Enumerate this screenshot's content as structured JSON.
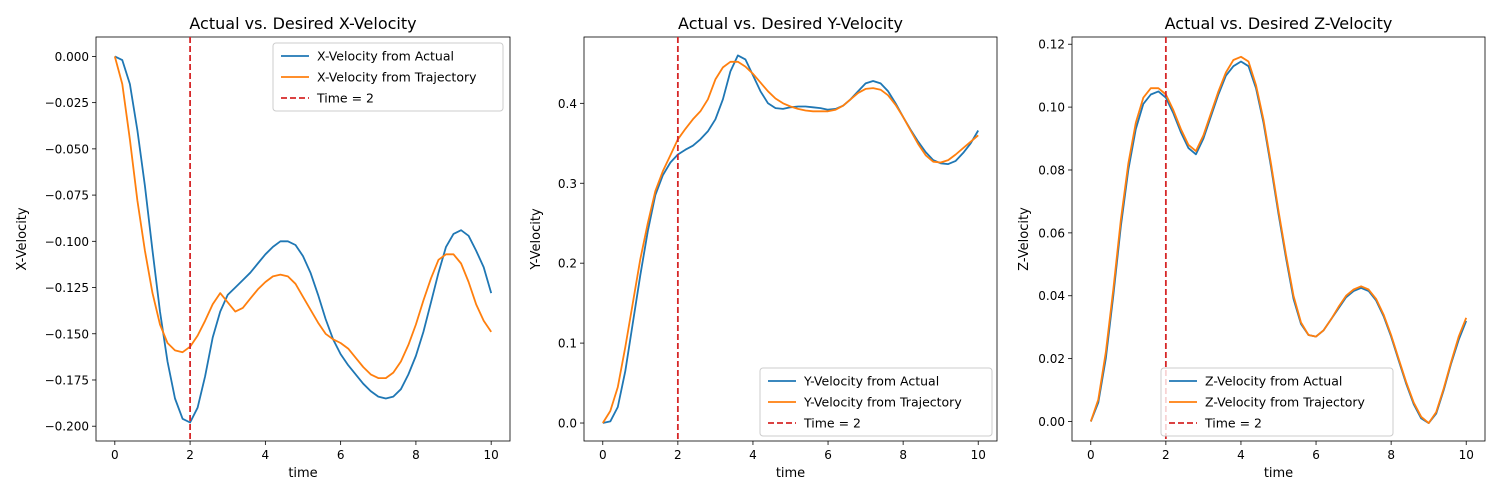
{
  "chart_data": [
    {
      "type": "line",
      "title": "Actual vs. Desired X-Velocity",
      "xlabel": "time",
      "ylabel": "X-Velocity",
      "xlim": [
        -0.5,
        10.5
      ],
      "ylim": [
        -0.208,
        0.0105
      ],
      "xticks": [
        0,
        2,
        4,
        6,
        8,
        10
      ],
      "xtick_labels": [
        "0",
        "2",
        "4",
        "6",
        "8",
        "10"
      ],
      "yticks": [
        0.0,
        -0.025,
        -0.05,
        -0.075,
        -0.1,
        -0.125,
        -0.15,
        -0.175,
        -0.2
      ],
      "ytick_labels": [
        "0.000",
        "−0.025",
        "−0.050",
        "−0.075",
        "−0.100",
        "−0.125",
        "−0.150",
        "−0.175",
        "−0.200"
      ],
      "grid": false,
      "legend_position": "upper-right",
      "series": [
        {
          "name": "X-Velocity from Actual",
          "color": "#1f77b4",
          "style": "solid",
          "x": [
            0,
            0.2,
            0.4,
            0.6,
            0.8,
            1.0,
            1.2,
            1.4,
            1.6,
            1.8,
            2.0,
            2.2,
            2.4,
            2.6,
            2.8,
            3.0,
            3.2,
            3.4,
            3.6,
            3.8,
            4.0,
            4.2,
            4.4,
            4.6,
            4.8,
            5.0,
            5.2,
            5.4,
            5.6,
            5.8,
            6.0,
            6.2,
            6.4,
            6.6,
            6.8,
            7.0,
            7.2,
            7.4,
            7.6,
            7.8,
            8.0,
            8.2,
            8.4,
            8.6,
            8.8,
            9.0,
            9.2,
            9.4,
            9.6,
            9.8,
            10.0
          ],
          "y": [
            0.0,
            -0.002,
            -0.015,
            -0.04,
            -0.07,
            -0.105,
            -0.138,
            -0.165,
            -0.185,
            -0.196,
            -0.198,
            -0.19,
            -0.173,
            -0.152,
            -0.138,
            -0.129,
            -0.125,
            -0.121,
            -0.117,
            -0.112,
            -0.107,
            -0.103,
            -0.1,
            -0.1,
            -0.102,
            -0.108,
            -0.117,
            -0.129,
            -0.142,
            -0.153,
            -0.161,
            -0.167,
            -0.172,
            -0.177,
            -0.181,
            -0.184,
            -0.185,
            -0.184,
            -0.18,
            -0.172,
            -0.162,
            -0.149,
            -0.133,
            -0.117,
            -0.103,
            -0.096,
            -0.094,
            -0.097,
            -0.105,
            -0.114,
            -0.128
          ]
        },
        {
          "name": "X-Velocity from Trajectory",
          "color": "#ff7f0e",
          "style": "solid",
          "x": [
            0,
            0.2,
            0.4,
            0.6,
            0.8,
            1.0,
            1.2,
            1.4,
            1.6,
            1.8,
            2.0,
            2.2,
            2.4,
            2.6,
            2.8,
            3.0,
            3.2,
            3.4,
            3.6,
            3.8,
            4.0,
            4.2,
            4.4,
            4.6,
            4.8,
            5.0,
            5.2,
            5.4,
            5.6,
            5.8,
            6.0,
            6.2,
            6.4,
            6.6,
            6.8,
            7.0,
            7.2,
            7.4,
            7.6,
            7.8,
            8.0,
            8.2,
            8.4,
            8.6,
            8.8,
            9.0,
            9.2,
            9.4,
            9.6,
            9.8,
            10.0
          ],
          "y": [
            0.0,
            -0.015,
            -0.045,
            -0.078,
            -0.105,
            -0.128,
            -0.145,
            -0.155,
            -0.159,
            -0.16,
            -0.157,
            -0.151,
            -0.143,
            -0.134,
            -0.128,
            -0.133,
            -0.138,
            -0.136,
            -0.131,
            -0.126,
            -0.122,
            -0.119,
            -0.118,
            -0.119,
            -0.123,
            -0.13,
            -0.137,
            -0.144,
            -0.15,
            -0.153,
            -0.155,
            -0.158,
            -0.163,
            -0.168,
            -0.172,
            -0.174,
            -0.174,
            -0.171,
            -0.165,
            -0.156,
            -0.145,
            -0.132,
            -0.12,
            -0.11,
            -0.107,
            -0.107,
            -0.112,
            -0.122,
            -0.134,
            -0.143,
            -0.149
          ]
        },
        {
          "name": "Time = 2",
          "color": "#d62728",
          "style": "dashed",
          "vline_x": 2
        }
      ]
    },
    {
      "type": "line",
      "title": "Actual vs. Desired Y-Velocity",
      "xlabel": "time",
      "ylabel": "Y-Velocity",
      "xlim": [
        -0.5,
        10.5
      ],
      "ylim": [
        -0.0225,
        0.483
      ],
      "xticks": [
        0,
        2,
        4,
        6,
        8,
        10
      ],
      "xtick_labels": [
        "0",
        "2",
        "4",
        "6",
        "8",
        "10"
      ],
      "yticks": [
        0.0,
        0.1,
        0.2,
        0.3,
        0.4
      ],
      "ytick_labels": [
        "0.0",
        "0.1",
        "0.2",
        "0.3",
        "0.4"
      ],
      "grid": false,
      "legend_position": "lower-right",
      "series": [
        {
          "name": "Y-Velocity from Actual",
          "color": "#1f77b4",
          "style": "solid",
          "x": [
            0,
            0.2,
            0.4,
            0.6,
            0.8,
            1.0,
            1.2,
            1.4,
            1.6,
            1.8,
            2.0,
            2.2,
            2.4,
            2.6,
            2.8,
            3.0,
            3.2,
            3.4,
            3.6,
            3.8,
            4.0,
            4.2,
            4.4,
            4.6,
            4.8,
            5.0,
            5.2,
            5.4,
            5.6,
            5.8,
            6.0,
            6.2,
            6.4,
            6.6,
            6.8,
            7.0,
            7.2,
            7.4,
            7.6,
            7.8,
            8.0,
            8.2,
            8.4,
            8.6,
            8.8,
            9.0,
            9.2,
            9.4,
            9.6,
            9.8,
            10.0
          ],
          "y": [
            0.0,
            0.002,
            0.02,
            0.065,
            0.125,
            0.185,
            0.24,
            0.285,
            0.31,
            0.326,
            0.336,
            0.342,
            0.347,
            0.355,
            0.365,
            0.38,
            0.405,
            0.44,
            0.46,
            0.455,
            0.435,
            0.415,
            0.4,
            0.394,
            0.393,
            0.395,
            0.396,
            0.396,
            0.395,
            0.394,
            0.392,
            0.393,
            0.397,
            0.405,
            0.415,
            0.425,
            0.428,
            0.425,
            0.415,
            0.4,
            0.383,
            0.367,
            0.352,
            0.339,
            0.329,
            0.325,
            0.324,
            0.328,
            0.338,
            0.35,
            0.366
          ]
        },
        {
          "name": "Y-Velocity from Trajectory",
          "color": "#ff7f0e",
          "style": "solid",
          "x": [
            0,
            0.2,
            0.4,
            0.6,
            0.8,
            1.0,
            1.2,
            1.4,
            1.6,
            1.8,
            2.0,
            2.2,
            2.4,
            2.6,
            2.8,
            3.0,
            3.2,
            3.4,
            3.6,
            3.8,
            4.0,
            4.2,
            4.4,
            4.6,
            4.8,
            5.0,
            5.2,
            5.4,
            5.6,
            5.8,
            6.0,
            6.2,
            6.4,
            6.6,
            6.8,
            7.0,
            7.2,
            7.4,
            7.6,
            7.8,
            8.0,
            8.2,
            8.4,
            8.6,
            8.8,
            9.0,
            9.2,
            9.4,
            9.6,
            9.8,
            10.0
          ],
          "y": [
            0.0,
            0.015,
            0.045,
            0.095,
            0.15,
            0.205,
            0.25,
            0.29,
            0.315,
            0.335,
            0.355,
            0.368,
            0.38,
            0.39,
            0.405,
            0.43,
            0.445,
            0.452,
            0.452,
            0.446,
            0.437,
            0.426,
            0.415,
            0.406,
            0.4,
            0.396,
            0.393,
            0.391,
            0.39,
            0.39,
            0.39,
            0.392,
            0.397,
            0.405,
            0.413,
            0.418,
            0.419,
            0.417,
            0.41,
            0.398,
            0.383,
            0.366,
            0.349,
            0.335,
            0.327,
            0.326,
            0.329,
            0.336,
            0.344,
            0.352,
            0.36
          ]
        },
        {
          "name": "Time = 2",
          "color": "#d62728",
          "style": "dashed",
          "vline_x": 2
        }
      ]
    },
    {
      "type": "line",
      "title": "Actual vs. Desired Z-Velocity",
      "xlabel": "time",
      "ylabel": "Z-Velocity",
      "xlim": [
        -0.5,
        10.5
      ],
      "ylim": [
        -0.0062,
        0.1223
      ],
      "xticks": [
        0,
        2,
        4,
        6,
        8,
        10
      ],
      "xtick_labels": [
        "0",
        "2",
        "4",
        "6",
        "8",
        "10"
      ],
      "yticks": [
        0.0,
        0.02,
        0.04,
        0.06,
        0.08,
        0.1,
        0.12
      ],
      "ytick_labels": [
        "0.00",
        "0.02",
        "0.04",
        "0.06",
        "0.08",
        "0.10",
        "0.12"
      ],
      "grid": false,
      "legend_position": "lower-center",
      "series": [
        {
          "name": "Z-Velocity from Actual",
          "color": "#1f77b4",
          "style": "solid",
          "x": [
            0,
            0.2,
            0.4,
            0.6,
            0.8,
            1.0,
            1.2,
            1.4,
            1.6,
            1.8,
            2.0,
            2.2,
            2.4,
            2.6,
            2.8,
            3.0,
            3.2,
            3.4,
            3.6,
            3.8,
            4.0,
            4.2,
            4.4,
            4.6,
            4.8,
            5.0,
            5.2,
            5.4,
            5.6,
            5.8,
            6.0,
            6.2,
            6.4,
            6.6,
            6.8,
            7.0,
            7.2,
            7.4,
            7.6,
            7.8,
            8.0,
            8.2,
            8.4,
            8.6,
            8.8,
            9.0,
            9.2,
            9.4,
            9.6,
            9.8,
            10.0
          ],
          "y": [
            0.0,
            0.006,
            0.02,
            0.04,
            0.062,
            0.08,
            0.093,
            0.101,
            0.104,
            0.105,
            0.103,
            0.098,
            0.092,
            0.087,
            0.085,
            0.09,
            0.097,
            0.104,
            0.11,
            0.113,
            0.1145,
            0.113,
            0.106,
            0.095,
            0.081,
            0.066,
            0.052,
            0.039,
            0.031,
            0.0275,
            0.027,
            0.029,
            0.0325,
            0.036,
            0.0395,
            0.0415,
            0.0425,
            0.0415,
            0.0385,
            0.0335,
            0.027,
            0.0195,
            0.012,
            0.0055,
            0.001,
            -0.0005,
            0.0025,
            0.01,
            0.0185,
            0.026,
            0.032
          ]
        },
        {
          "name": "Z-Velocity from Trajectory",
          "color": "#ff7f0e",
          "style": "solid",
          "x": [
            0,
            0.2,
            0.4,
            0.6,
            0.8,
            1.0,
            1.2,
            1.4,
            1.6,
            1.8,
            2.0,
            2.2,
            2.4,
            2.6,
            2.8,
            3.0,
            3.2,
            3.4,
            3.6,
            3.8,
            4.0,
            4.2,
            4.4,
            4.6,
            4.8,
            5.0,
            5.2,
            5.4,
            5.6,
            5.8,
            6.0,
            6.2,
            6.4,
            6.6,
            6.8,
            7.0,
            7.2,
            7.4,
            7.6,
            7.8,
            8.0,
            8.2,
            8.4,
            8.6,
            8.8,
            9.0,
            9.2,
            9.4,
            9.6,
            9.8,
            10.0
          ],
          "y": [
            0.0,
            0.007,
            0.022,
            0.042,
            0.064,
            0.082,
            0.095,
            0.103,
            0.106,
            0.106,
            0.104,
            0.099,
            0.093,
            0.088,
            0.086,
            0.091,
            0.098,
            0.105,
            0.111,
            0.115,
            0.116,
            0.1145,
            0.107,
            0.096,
            0.082,
            0.067,
            0.053,
            0.04,
            0.0315,
            0.0275,
            0.027,
            0.029,
            0.0325,
            0.0365,
            0.04,
            0.042,
            0.043,
            0.042,
            0.039,
            0.034,
            0.0275,
            0.02,
            0.0125,
            0.006,
            0.0015,
            -0.0005,
            0.003,
            0.0105,
            0.019,
            0.027,
            0.033
          ]
        },
        {
          "name": "Time = 2",
          "color": "#d62728",
          "style": "dashed",
          "vline_x": 2
        }
      ]
    }
  ]
}
